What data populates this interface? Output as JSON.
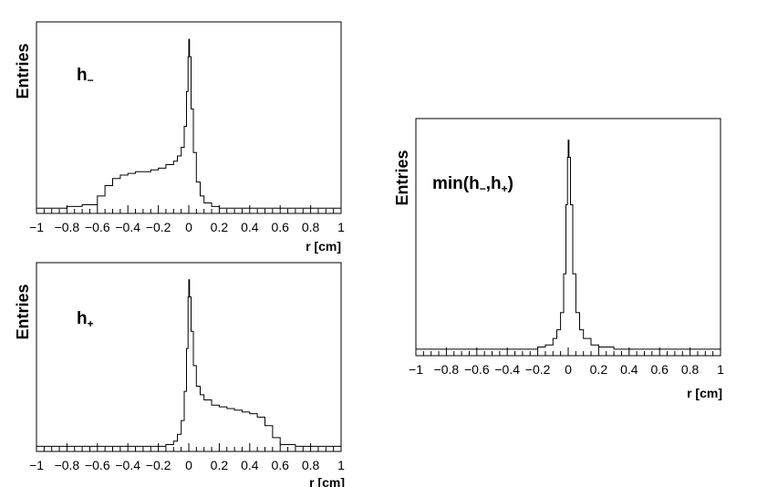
{
  "chart_data": [
    {
      "type": "line",
      "label_text": {
        "main": "h",
        "sub": "−",
        "suffix": ""
      },
      "ylabel": "Entries",
      "xlabel": "r [cm]",
      "xlim": [
        -1,
        1
      ],
      "ylim": [
        0,
        1.1
      ],
      "x_ticks": [
        "−1",
        "−0.8",
        "−0.6",
        "−0.4",
        "−0.2",
        "0",
        "0.2",
        "0.4",
        "0.6",
        "0.8",
        "1"
      ],
      "series": [
        {
          "x": [
            -1.0,
            -0.9,
            -0.8,
            -0.7,
            -0.6,
            -0.55,
            -0.5,
            -0.45,
            -0.4,
            -0.35,
            -0.3,
            -0.25,
            -0.2,
            -0.15,
            -0.1,
            -0.075,
            -0.05,
            -0.03,
            -0.015,
            -0.005,
            0.0,
            0.005,
            0.015,
            0.03,
            0.05,
            0.075,
            0.1,
            0.15,
            0.2,
            0.3,
            0.4,
            0.5,
            0.6,
            0.7,
            0.8,
            0.9,
            1.0
          ],
          "y": [
            0.03,
            0.03,
            0.04,
            0.05,
            0.1,
            0.16,
            0.2,
            0.22,
            0.23,
            0.24,
            0.24,
            0.25,
            0.26,
            0.28,
            0.3,
            0.33,
            0.38,
            0.5,
            0.7,
            0.9,
            1.0,
            0.9,
            0.6,
            0.35,
            0.18,
            0.1,
            0.06,
            0.04,
            0.03,
            0.03,
            0.03,
            0.03,
            0.03,
            0.03,
            0.03,
            0.03,
            0.03
          ]
        }
      ]
    },
    {
      "type": "line",
      "label_text": {
        "main": "h",
        "sub": "+",
        "suffix": ""
      },
      "ylabel": "Entries",
      "xlabel": "r [cm]",
      "xlim": [
        -1,
        1
      ],
      "ylim": [
        0,
        1.1
      ],
      "x_ticks": [
        "−1",
        "−0.8",
        "−0.6",
        "−0.4",
        "−0.2",
        "0",
        "0.2",
        "0.4",
        "0.6",
        "0.8",
        "1"
      ],
      "series": [
        {
          "x": [
            -1.0,
            -0.9,
            -0.8,
            -0.7,
            -0.6,
            -0.5,
            -0.4,
            -0.3,
            -0.2,
            -0.15,
            -0.1,
            -0.075,
            -0.05,
            -0.03,
            -0.015,
            -0.005,
            0.0,
            0.005,
            0.015,
            0.03,
            0.05,
            0.075,
            0.1,
            0.15,
            0.2,
            0.25,
            0.3,
            0.35,
            0.4,
            0.45,
            0.5,
            0.55,
            0.6,
            0.7,
            0.8,
            0.9,
            1.0
          ],
          "y": [
            0.03,
            0.03,
            0.03,
            0.03,
            0.03,
            0.03,
            0.03,
            0.03,
            0.03,
            0.04,
            0.06,
            0.1,
            0.18,
            0.35,
            0.6,
            0.9,
            1.0,
            0.9,
            0.7,
            0.5,
            0.38,
            0.33,
            0.3,
            0.27,
            0.26,
            0.25,
            0.24,
            0.23,
            0.22,
            0.2,
            0.15,
            0.08,
            0.04,
            0.03,
            0.03,
            0.03,
            0.03
          ]
        }
      ]
    },
    {
      "type": "line",
      "label_text": {
        "main": "min(h",
        "sub": "−",
        "mid": ",h",
        "sub2": "+",
        "suffix": ")"
      },
      "ylabel": "Entries",
      "xlabel": "r [cm]",
      "xlim": [
        -1,
        1
      ],
      "ylim": [
        0,
        1.1
      ],
      "x_ticks": [
        "−1",
        "−0.8",
        "−0.6",
        "−0.4",
        "−0.2",
        "0",
        "0.2",
        "0.4",
        "0.6",
        "0.8",
        "1"
      ],
      "series": [
        {
          "x": [
            -1.0,
            -0.8,
            -0.6,
            -0.4,
            -0.3,
            -0.2,
            -0.15,
            -0.1,
            -0.075,
            -0.05,
            -0.03,
            -0.015,
            -0.005,
            0.0,
            0.005,
            0.015,
            0.03,
            0.05,
            0.075,
            0.1,
            0.15,
            0.2,
            0.3,
            0.4,
            0.6,
            0.8,
            1.0
          ],
          "y": [
            0.03,
            0.03,
            0.03,
            0.03,
            0.03,
            0.04,
            0.05,
            0.08,
            0.12,
            0.2,
            0.38,
            0.7,
            0.92,
            1.0,
            0.92,
            0.7,
            0.38,
            0.2,
            0.12,
            0.08,
            0.05,
            0.04,
            0.03,
            0.03,
            0.03,
            0.03,
            0.03
          ]
        }
      ]
    }
  ]
}
